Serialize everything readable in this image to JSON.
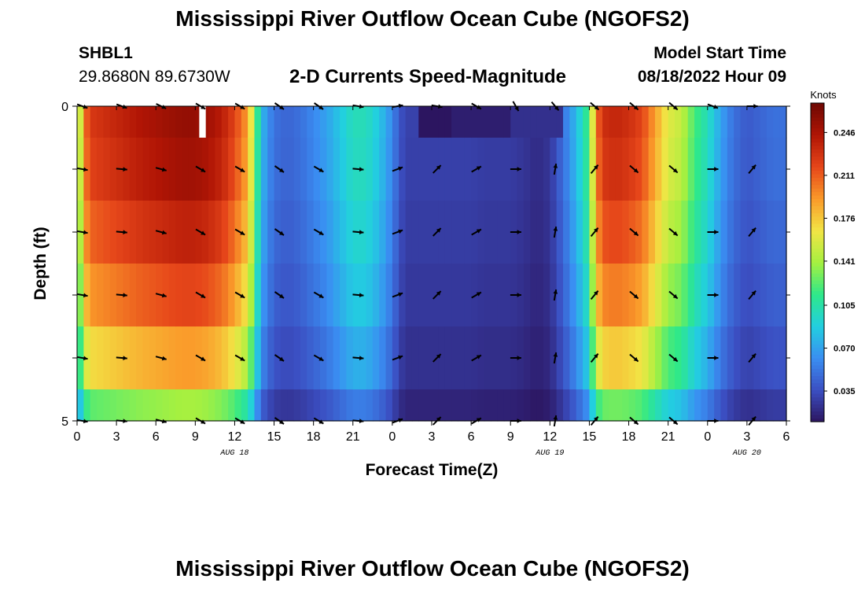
{
  "header": {
    "title": "Mississippi River Outflow Ocean Cube (NGOFS2)",
    "station_id": "SHBL1",
    "station_coords": "29.8680N  89.6730W",
    "plot_title": "2-D Currents Speed-Magnitude",
    "start_label": "Model Start Time",
    "start_value": "08/18/2022 Hour 09"
  },
  "footer": {
    "title_repeat": "Mississippi River Outflow Ocean Cube (NGOFS2)"
  },
  "chart_data": {
    "type": "heatmap",
    "xlabel": "Forecast Time(Z)",
    "ylabel": "Depth (ft)",
    "x_unit": "hours",
    "xlim": [
      0,
      54
    ],
    "x_ticks": [
      0,
      3,
      6,
      9,
      12,
      15,
      18,
      21,
      24,
      27,
      30,
      33,
      36,
      39,
      42,
      45,
      48,
      51,
      54
    ],
    "x_tick_labels": [
      "0",
      "3",
      "6",
      "9",
      "12",
      "15",
      "18",
      "21",
      "0",
      "3",
      "6",
      "9",
      "12",
      "15",
      "18",
      "21",
      "0",
      "3",
      "6"
    ],
    "date_labels": [
      {
        "x": 12,
        "text": "AUG 18"
      },
      {
        "x": 36,
        "text": "AUG 19"
      },
      {
        "x": 51,
        "text": "AUG 20"
      }
    ],
    "ylim": [
      0,
      5
    ],
    "y_tick_labels": [
      {
        "y": 0,
        "text": "0"
      },
      {
        "y": 5,
        "text": "5"
      }
    ],
    "depth_levels": [
      0,
      1,
      2,
      3,
      4,
      5
    ],
    "colorbar": {
      "title": "Knots",
      "range": [
        0.01,
        0.27
      ],
      "ticks": [
        0.035,
        0.07,
        0.105,
        0.141,
        0.176,
        0.211,
        0.246
      ],
      "tick_labels": [
        "0.035",
        "0.070",
        "0.105",
        "0.141",
        "0.176",
        "0.211",
        "0.246"
      ],
      "colors": [
        "#2c1560",
        "#3b4fc2",
        "#3a8ef2",
        "#22cfe0",
        "#2ee88a",
        "#a6f040",
        "#f2e545",
        "#fa9a2a",
        "#e6461a",
        "#b01505",
        "#6e0803"
      ]
    },
    "speed_profile": {
      "hours": [
        0,
        0.5,
        1,
        2,
        3,
        4,
        5,
        6,
        7,
        8,
        9,
        10,
        11,
        12,
        13,
        13.5,
        14,
        15,
        16,
        17,
        18,
        19,
        20,
        21,
        22,
        23,
        24,
        24.5,
        25,
        26,
        27,
        28,
        29,
        30,
        31,
        32,
        33,
        34,
        35,
        36,
        37,
        38,
        39,
        39.5,
        40,
        41,
        42,
        43,
        44,
        45,
        46,
        47,
        48,
        49,
        50,
        51,
        52,
        53,
        54
      ],
      "speed": [
        0.11,
        0.2,
        0.225,
        0.23,
        0.235,
        0.24,
        0.245,
        0.248,
        0.252,
        0.255,
        0.255,
        0.25,
        0.24,
        0.22,
        0.19,
        0.14,
        0.08,
        0.05,
        0.045,
        0.05,
        0.06,
        0.07,
        0.085,
        0.1,
        0.1,
        0.085,
        0.06,
        0.04,
        0.03,
        0.03,
        0.03,
        0.03,
        0.03,
        0.03,
        0.028,
        0.028,
        0.028,
        0.025,
        0.02,
        0.025,
        0.05,
        0.08,
        0.12,
        0.2,
        0.23,
        0.235,
        0.23,
        0.22,
        0.19,
        0.16,
        0.15,
        0.12,
        0.1,
        0.07,
        0.05,
        0.04,
        0.045,
        0.05,
        0.05
      ]
    },
    "depth_factor": [
      1.0,
      0.98,
      0.93,
      0.86,
      0.75,
      0.55
    ],
    "surface_cells": [
      {
        "x0": 26,
        "x1": 28.5,
        "speed": 0.008
      },
      {
        "x0": 28.5,
        "x1": 33,
        "speed": 0.014
      },
      {
        "x0": 33,
        "x1": 37,
        "speed": 0.022
      }
    ],
    "vectors": {
      "hours": [
        0,
        3,
        6,
        9,
        12,
        15,
        18,
        21,
        24,
        27,
        30,
        33,
        36,
        39,
        42,
        45,
        48,
        51
      ],
      "surface_angles_deg": [
        20,
        20,
        25,
        30,
        30,
        35,
        35,
        10,
        -10,
        10,
        30,
        60,
        50,
        40,
        40,
        40,
        20,
        0
      ],
      "depth_angles_deg": [
        10,
        5,
        15,
        30,
        30,
        35,
        30,
        5,
        -20,
        -45,
        -30,
        0,
        -80,
        -50,
        40,
        40,
        0,
        -50
      ]
    }
  }
}
